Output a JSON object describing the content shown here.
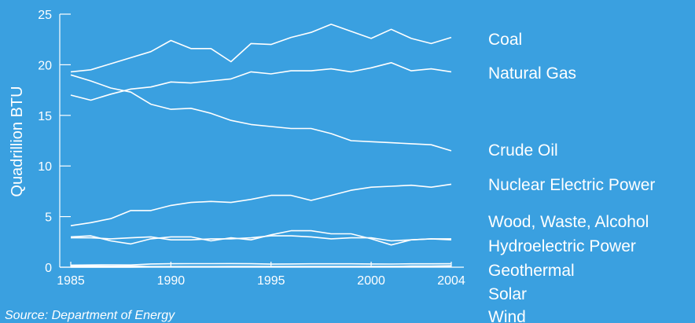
{
  "chart_data": {
    "type": "line",
    "ylabel": "Quadrillion BTU",
    "xlabel": "",
    "ylim": [
      0,
      25
    ],
    "xlim": [
      1985,
      2004
    ],
    "yticks": [
      0,
      5,
      10,
      15,
      20,
      25
    ],
    "xticks": [
      1985,
      1990,
      1995,
      2000,
      2004
    ],
    "grid": false,
    "legend_placement": "right",
    "x": [
      1985,
      1986,
      1987,
      1988,
      1989,
      1990,
      1991,
      1992,
      1993,
      1994,
      1995,
      1996,
      1997,
      1998,
      1999,
      2000,
      2001,
      2002,
      2003,
      2004
    ],
    "series": [
      {
        "name": "Coal",
        "values": [
          19.3,
          19.5,
          20.1,
          20.7,
          21.3,
          22.4,
          21.6,
          21.6,
          20.3,
          22.1,
          22.0,
          22.7,
          23.2,
          24.0,
          23.3,
          22.6,
          23.5,
          22.6,
          22.1,
          22.7
        ]
      },
      {
        "name": "Natural Gas",
        "values": [
          17.0,
          16.5,
          17.1,
          17.6,
          17.8,
          18.3,
          18.2,
          18.4,
          18.6,
          19.3,
          19.1,
          19.4,
          19.4,
          19.6,
          19.3,
          19.7,
          20.2,
          19.4,
          19.6,
          19.3
        ]
      },
      {
        "name": "Crude Oil",
        "values": [
          19.0,
          18.4,
          17.7,
          17.3,
          16.1,
          15.6,
          15.7,
          15.2,
          14.5,
          14.1,
          13.9,
          13.7,
          13.7,
          13.2,
          12.5,
          12.4,
          12.3,
          12.2,
          12.1,
          11.5
        ]
      },
      {
        "name": "Nuclear Electric Power",
        "values": [
          4.1,
          4.4,
          4.8,
          5.6,
          5.6,
          6.1,
          6.4,
          6.5,
          6.4,
          6.7,
          7.1,
          7.1,
          6.6,
          7.1,
          7.6,
          7.9,
          8.0,
          8.1,
          7.9,
          8.2
        ]
      },
      {
        "name": "Wood, Waste, Alcohol",
        "values": [
          2.9,
          2.9,
          2.8,
          2.9,
          3.0,
          2.7,
          2.7,
          2.8,
          2.8,
          2.9,
          3.1,
          3.1,
          3.0,
          2.8,
          2.9,
          2.9,
          2.6,
          2.7,
          2.8,
          2.8
        ]
      },
      {
        "name": "Hydroelectric Power",
        "values": [
          3.0,
          3.1,
          2.6,
          2.3,
          2.8,
          3.0,
          3.0,
          2.6,
          2.9,
          2.7,
          3.2,
          3.6,
          3.6,
          3.3,
          3.3,
          2.8,
          2.2,
          2.7,
          2.8,
          2.7
        ]
      },
      {
        "name": "Geothermal",
        "values": [
          0.2,
          0.22,
          0.23,
          0.22,
          0.32,
          0.34,
          0.35,
          0.35,
          0.36,
          0.34,
          0.3,
          0.32,
          0.33,
          0.33,
          0.33,
          0.32,
          0.31,
          0.33,
          0.33,
          0.34
        ]
      },
      {
        "name": "Solar",
        "values": [
          0.1,
          0.1,
          0.1,
          0.11,
          0.06,
          0.06,
          0.06,
          0.06,
          0.07,
          0.07,
          0.07,
          0.07,
          0.07,
          0.07,
          0.07,
          0.07,
          0.07,
          0.06,
          0.06,
          0.06
        ]
      },
      {
        "name": "Wind",
        "values": [
          0.0,
          0.0,
          0.0,
          0.0,
          0.02,
          0.03,
          0.03,
          0.03,
          0.03,
          0.04,
          0.03,
          0.03,
          0.03,
          0.03,
          0.05,
          0.06,
          0.07,
          0.11,
          0.12,
          0.14
        ]
      }
    ],
    "source": "Source: Department of Energy"
  },
  "colors": {
    "background": "#3aa0e0",
    "foreground": "#ffffff"
  }
}
